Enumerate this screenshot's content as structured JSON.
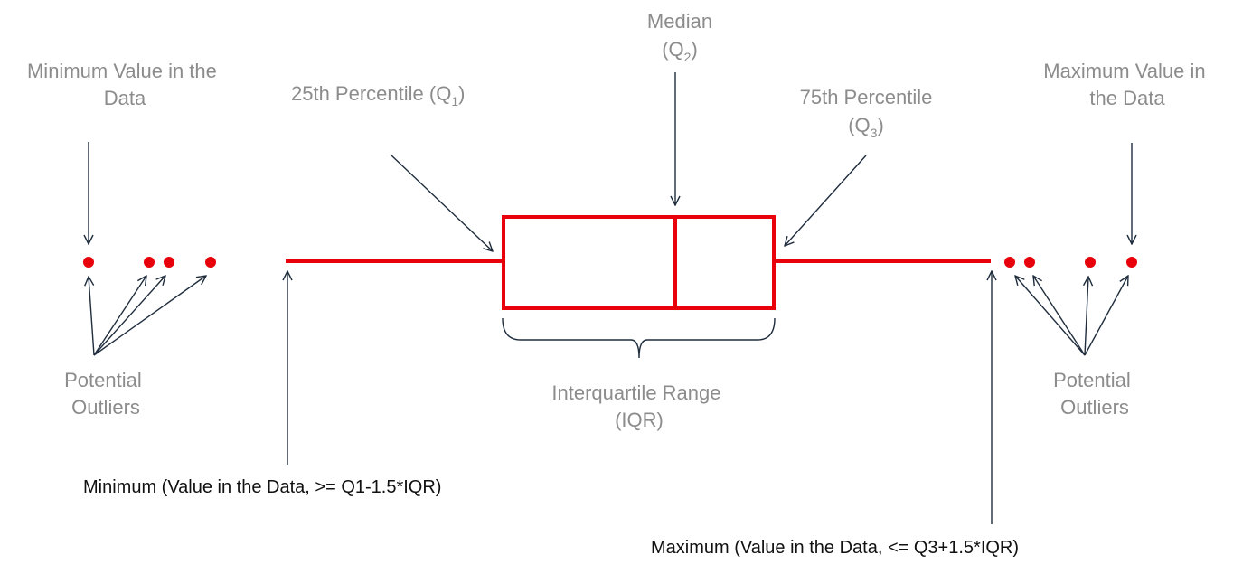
{
  "colors": {
    "box": "#e8000a",
    "outlier": "#e8000a",
    "arrow": "#1f2d3d",
    "label_gray": "#8c8c8c",
    "label_dark": "#111111"
  },
  "labels": {
    "min_value_line1": "Minimum Value in the",
    "min_value_line2": "Data",
    "q1_text": "25th Percentile (Q",
    "q1_sub": "1",
    "q1_close": ")",
    "median_line1": "Median",
    "median_open": "(Q",
    "median_sub": "2",
    "median_close": ")",
    "q3_line1": "75th Percentile",
    "q3_open": "(Q",
    "q3_sub": "3",
    "q3_close": ")",
    "max_value_line1": "Maximum Value in",
    "max_value_line2": "the Data",
    "left_outliers_line1": "Potential",
    "left_outliers_line2": "Outliers",
    "right_outliers_line1": "Potential",
    "right_outliers_line2": "Outliers",
    "iqr_line1": "Interquartile Range",
    "iqr_line2": "(IQR)",
    "whisker_min": "Minimum (Value in the Data, >= Q1-1.5*IQR)",
    "whisker_max": "Maximum (Value in the Data, <= Q3+1.5*IQR)"
  }
}
